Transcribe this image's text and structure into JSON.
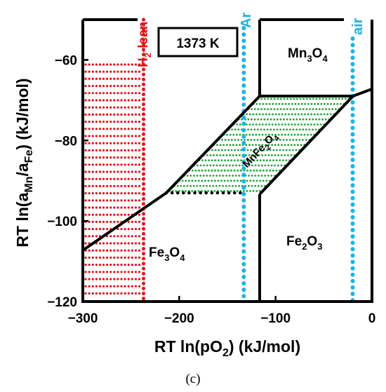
{
  "diagram": {
    "temperature_label": "1373 K",
    "caption": "(c)",
    "x_axis": {
      "title_main": "RT ln(pO",
      "title_sub": "2",
      "title_end": ") (kJ/mol)",
      "range": [
        -300,
        0
      ],
      "ticks": [
        {
          "value": -300,
          "label": "−300"
        },
        {
          "value": -200,
          "label": "−200"
        },
        {
          "value": -100,
          "label": "−100"
        },
        {
          "value": 0,
          "label": "0"
        }
      ]
    },
    "y_axis": {
      "title_parts": [
        "RT ln(a",
        "Mn",
        "/a",
        "Fe",
        ") (kJ/mol)"
      ],
      "range": [
        -120,
        -50
      ],
      "ticks": [
        {
          "value": -60,
          "label": "−60"
        },
        {
          "value": -80,
          "label": "−80"
        },
        {
          "value": -100,
          "label": "−100"
        },
        {
          "value": -120,
          "label": "−120"
        }
      ]
    },
    "regions": {
      "mn3o4": {
        "base1": "Mn",
        "sub1": "3",
        "base2": "O",
        "sub2": "4"
      },
      "fe2o3": {
        "base1": "Fe",
        "sub1": "2",
        "base2": "O",
        "sub2": "3"
      },
      "fe3o4": {
        "base1": "Fe",
        "sub1": "3",
        "base2": "O",
        "sub2": "4"
      },
      "mnfe2o4": {
        "base1": "MnFe",
        "sub1": "2",
        "base2": "O",
        "sub2": "4"
      }
    },
    "markers": {
      "h2_lean": {
        "base": "H",
        "sub": "2",
        "rest": "-lean",
        "x": -237,
        "color": "#e8141c"
      },
      "ar": {
        "label": "Ar",
        "x": -133,
        "color": "#1ab4ea"
      },
      "air": {
        "label": "air",
        "x": -20,
        "color": "#1ab4ea"
      }
    },
    "colors": {
      "boundary": "#000000",
      "spinel_hatch": "#22a63a",
      "h2_lean_hatch": "#e8141c",
      "gas_lines": "#1ab4ea"
    }
  }
}
